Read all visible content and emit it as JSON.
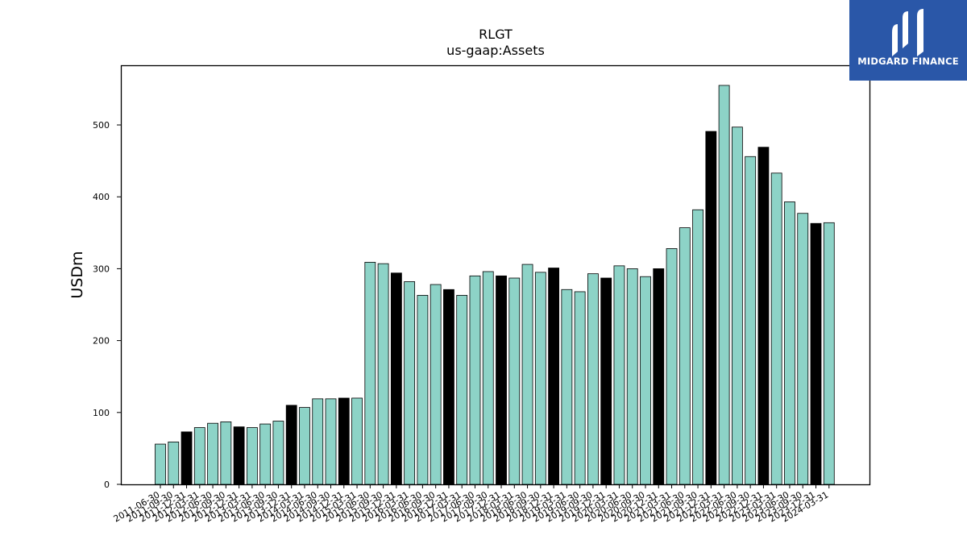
{
  "logo": {
    "text": "MIDGARD FINANCE",
    "icon": "m-logo-icon",
    "color": "#2a57a8"
  },
  "chart_data": {
    "type": "bar",
    "title": "RLGT",
    "subtitle": "us-gaap:Assets",
    "xlabel": "",
    "ylabel": "USDm",
    "ylim": [
      0,
      583
    ],
    "yticks": [
      0,
      100,
      200,
      300,
      400,
      500
    ],
    "grid": false,
    "colors": {
      "quarter": "#8dd3c7",
      "fiscal_year_end": "#000000",
      "edge": "#000000"
    },
    "categories": [
      "2011-06-30",
      "2011-09-30",
      "2011-12-31",
      "2012-03-31",
      "2012-06-30",
      "2012-09-30",
      "2012-12-31",
      "2013-03-31",
      "2013-06-30",
      "2013-09-30",
      "2013-12-31",
      "2014-03-31",
      "2014-06-30",
      "2014-09-30",
      "2014-12-31",
      "2015-03-31",
      "2015-06-30",
      "2015-09-30",
      "2015-12-31",
      "2016-03-31",
      "2016-06-30",
      "2016-09-30",
      "2016-12-31",
      "2017-03-31",
      "2017-06-30",
      "2017-09-30",
      "2017-12-31",
      "2018-03-31",
      "2018-06-30",
      "2018-09-30",
      "2018-12-31",
      "2019-03-31",
      "2019-06-30",
      "2019-09-30",
      "2019-12-31",
      "2020-03-31",
      "2020-06-30",
      "2020-09-30",
      "2020-12-31",
      "2021-03-31",
      "2021-06-30",
      "2021-09-30",
      "2021-12-31",
      "2022-03-31",
      "2022-06-30",
      "2022-09-30",
      "2022-12-31",
      "2023-03-31",
      "2023-06-30",
      "2023-09-30",
      "2023-12-31",
      "2024-03-31"
    ],
    "values": [
      56,
      59,
      73,
      79,
      85,
      87,
      80,
      79,
      84,
      88,
      110,
      107,
      119,
      119,
      120,
      120,
      309,
      307,
      294,
      282,
      263,
      278,
      271,
      263,
      290,
      296,
      290,
      287,
      306,
      295,
      301,
      271,
      268,
      293,
      287,
      304,
      300,
      289,
      300,
      328,
      357,
      382,
      491,
      555,
      497,
      456,
      469,
      433,
      393,
      377,
      363,
      364
    ],
    "highlight": [
      false,
      false,
      true,
      false,
      false,
      false,
      true,
      false,
      false,
      false,
      true,
      false,
      false,
      false,
      true,
      false,
      false,
      false,
      true,
      false,
      false,
      false,
      true,
      false,
      false,
      false,
      true,
      false,
      false,
      false,
      true,
      false,
      false,
      false,
      true,
      false,
      false,
      false,
      true,
      false,
      false,
      false,
      true,
      false,
      false,
      false,
      true,
      false,
      false,
      false,
      true,
      false
    ]
  }
}
